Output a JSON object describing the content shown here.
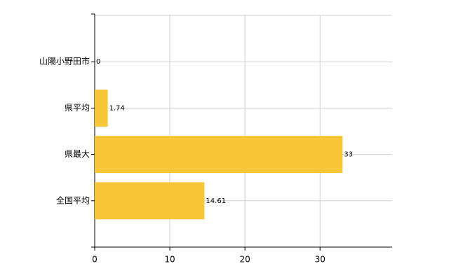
{
  "chart_data": {
    "type": "barh",
    "categories": [
      "山陽小野田市",
      "県平均",
      "県最大",
      "全国平均"
    ],
    "values": [
      0,
      1.74,
      33,
      14.61
    ],
    "color": "#f7c737",
    "xlim": [
      0,
      39.6
    ],
    "xticks": [
      0,
      10,
      20,
      30
    ],
    "grid": true
  }
}
